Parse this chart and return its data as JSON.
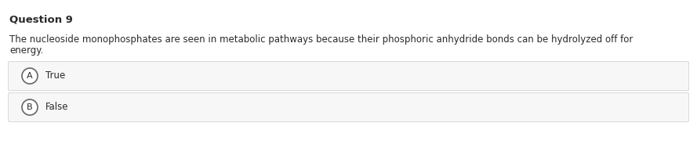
{
  "title": "Question 9",
  "question_text_line1": "The nucleoside monophosphates are seen in metabolic pathways because their phosphoric anhydride bonds can be hydrolyzed off for",
  "question_text_line2": "energy.",
  "options": [
    {
      "label": "A",
      "text": "True"
    },
    {
      "label": "B",
      "text": "False"
    }
  ],
  "bg_color": "#ffffff",
  "option_bg_color": "#f7f7f7",
  "option_border_color": "#d8d8d8",
  "title_fontsize": 9.5,
  "question_fontsize": 8.5,
  "option_fontsize": 8.5,
  "label_fontsize": 8.0,
  "text_color": "#2a2a2a",
  "circle_edge_color": "#666666",
  "circle_face_color": "#ffffff"
}
